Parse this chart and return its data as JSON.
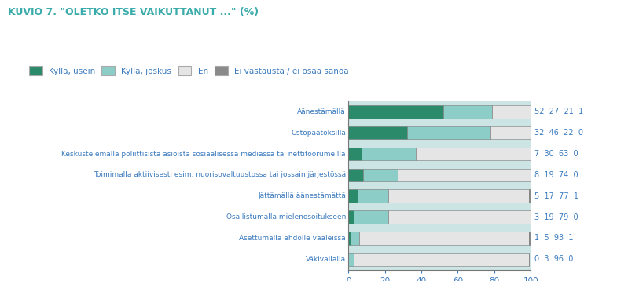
{
  "title": "KUVIO 7. \"OLETKO ITSE VAIKUTTANUT ...\" (%)",
  "title_color": "#3aabab",
  "categories": [
    "Äänestämällä",
    "Ostopäätöksillä",
    "Keskustelemalla poliittisista asioista sosiaalisessa mediassa tai nettifoorumeilla",
    "Toimimalla aktiivisesti esim. nuorisovaltuustossa tai jossain järjestössä",
    "Jättämällä äänestämättä",
    "Osallistumalla mielenosoitukseen",
    "Asettumalla ehdolle vaaleissa",
    "Väkivallalla"
  ],
  "kyllä_usein": [
    52,
    32,
    7,
    8,
    5,
    3,
    1,
    0
  ],
  "kyllä_joskus": [
    27,
    46,
    30,
    19,
    17,
    19,
    5,
    3
  ],
  "en": [
    21,
    22,
    63,
    74,
    77,
    79,
    93,
    96
  ],
  "eos": [
    1,
    0,
    0,
    0,
    1,
    0,
    1,
    0
  ],
  "color_usein": "#2a8a6a",
  "color_joskus": "#8dcdc8",
  "color_en": "#e5e5e5",
  "color_eos": "#8a8a8a",
  "bg_outer": "#cce4e4",
  "bg_title": "#ffffff",
  "bg_legend": "#ffffff",
  "legend_labels": [
    "Kyllä, usein",
    "Kyllä, joskus",
    "En",
    "Ei vastausta / ei osaa sanoa"
  ],
  "xlabel": "%",
  "xlim": [
    0,
    100
  ],
  "xticks": [
    0,
    20,
    40,
    60,
    80,
    100
  ],
  "label_color": "#3a7abf",
  "value_color": "#3a7abf",
  "figsize": [
    7.99,
    3.58
  ],
  "dpi": 100
}
